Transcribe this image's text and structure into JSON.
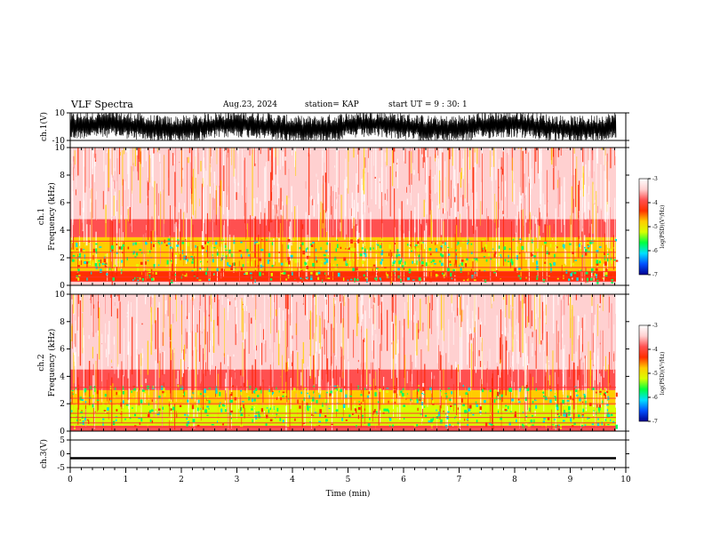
{
  "header": {
    "title": "VLF Spectra",
    "date": "Aug.23, 2024",
    "station": "station= KAP",
    "start": "start  UT =   9 : 30: 1"
  },
  "chart_data": [
    {
      "type": "line",
      "panel": "ch1-waveform",
      "ylabel": "ch.1(V)",
      "ylim": [
        -10,
        10
      ],
      "yticks": [
        10,
        -10
      ],
      "xlim": [
        0,
        10
      ],
      "series": [
        {
          "values_envelope": [
            -10,
            10
          ],
          "note_visible": "dense black waveform filling the range"
        }
      ]
    },
    {
      "type": "heatmap",
      "panel": "ch1-spectrogram",
      "ylabel": "ch.1 Frequency (kHz)",
      "ylim": [
        0,
        10
      ],
      "yticks": [
        0,
        2,
        4,
        6,
        8,
        10
      ],
      "xlim": [
        0,
        9.8
      ],
      "bands_khz": [
        {
          "from": 0.0,
          "to": 0.3,
          "level": -3.6
        },
        {
          "from": 0.3,
          "to": 1.0,
          "level": -4.3
        },
        {
          "from": 1.0,
          "to": 3.5,
          "level": -4.7
        },
        {
          "from": 3.5,
          "to": 4.8,
          "level": -4.1
        },
        {
          "from": 4.8,
          "to": 10.0,
          "level": -3.6
        }
      ]
    },
    {
      "type": "heatmap",
      "panel": "ch2-spectrogram",
      "ylabel": "ch.2 Frequency (kHz)",
      "ylim": [
        0,
        10
      ],
      "yticks": [
        0,
        2,
        4,
        6,
        8,
        10
      ],
      "xlim": [
        0,
        9.8
      ],
      "bands_khz": [
        {
          "from": 0.0,
          "to": 0.4,
          "level": -3.7
        },
        {
          "from": 0.4,
          "to": 1.9,
          "level": -5.1
        },
        {
          "from": 1.9,
          "to": 3.0,
          "level": -4.6
        },
        {
          "from": 3.0,
          "to": 4.5,
          "level": -4.0
        },
        {
          "from": 4.5,
          "to": 10.0,
          "level": -3.5
        }
      ]
    },
    {
      "type": "line",
      "panel": "ch3-waveform",
      "ylabel": "ch.3(V)",
      "ylim": [
        -5,
        5
      ],
      "yticks": [
        5,
        0,
        -5
      ],
      "xlim": [
        0,
        10
      ],
      "xlabel": "Time  (min)",
      "xticks": [
        0,
        1,
        2,
        3,
        4,
        5,
        6,
        7,
        8,
        9,
        10
      ],
      "series": [
        {
          "values_envelope": [
            -2.0,
            -1.2
          ]
        }
      ]
    }
  ],
  "colorbar": {
    "label": "log(PSD)(V²/Hz)",
    "ticks": [
      -3,
      -4,
      -5,
      -6,
      -7
    ],
    "range": [
      -7,
      -3
    ],
    "colors": [
      "#000090",
      "#0050ff",
      "#00e0ff",
      "#00ff40",
      "#d8ff00",
      "#ffcc00",
      "#ff3000",
      "#ff5050",
      "#ffd0d0",
      "#ffffff"
    ]
  }
}
